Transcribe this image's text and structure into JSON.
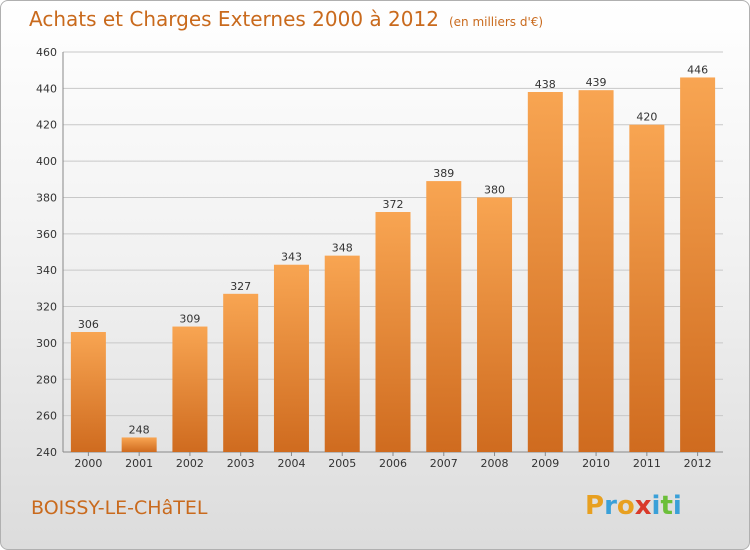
{
  "title": "Achats et Charges Externes 2000 à 2012",
  "unit": "(en milliers d'€)",
  "place": "BOISSY-LE-CHâTEL",
  "logo": {
    "letters": [
      "P",
      "r",
      "o",
      "x",
      "i",
      "t",
      "i"
    ],
    "colors": [
      "#e8a020",
      "#3aa0d8",
      "#e8a020",
      "#d93a2a",
      "#3aa0d8",
      "#6cbf3a",
      "#3aa0d8"
    ]
  },
  "colors": {
    "bar_top": "#f8a552",
    "bar_bottom": "#cf6b1f",
    "title": "#c96a1d",
    "grid": "#c8c8c8"
  },
  "chart_data": {
    "type": "bar",
    "categories": [
      "2000",
      "2001",
      "2002",
      "2003",
      "2004",
      "2005",
      "2006",
      "2007",
      "2008",
      "2009",
      "2010",
      "2011",
      "2012"
    ],
    "values": [
      306,
      248,
      309,
      327,
      343,
      348,
      372,
      389,
      380,
      438,
      439,
      420,
      446
    ],
    "ylim": [
      240,
      460
    ],
    "yticks": [
      240,
      260,
      280,
      300,
      320,
      340,
      360,
      380,
      400,
      420,
      440,
      460
    ],
    "grid": true
  }
}
